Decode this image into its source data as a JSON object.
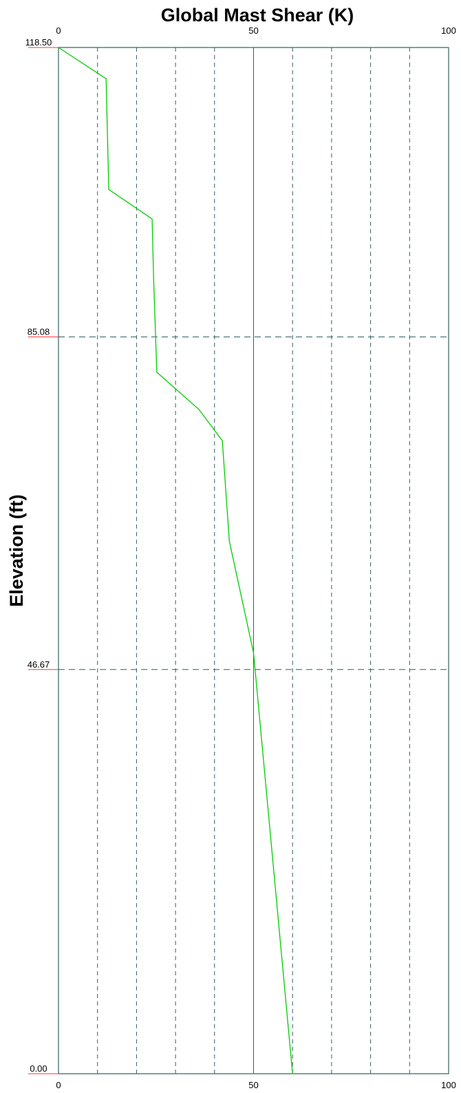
{
  "chart_data": {
    "type": "line",
    "title": "Global Mast Shear (K)",
    "xlabel": "",
    "ylabel": "Elevation (ft)",
    "xlim": [
      0,
      100
    ],
    "ylim": [
      0,
      118.5
    ],
    "x_ticks_major": [
      0,
      50,
      100
    ],
    "x_tick_labels": [
      "0",
      "50",
      "100"
    ],
    "x_minor_gridlines": [
      10,
      20,
      30,
      40,
      60,
      70,
      80,
      90
    ],
    "y_ticks": [
      0,
      46.67,
      85.08,
      118.5
    ],
    "y_tick_labels": [
      "0.00",
      "46.67",
      "85.08",
      "118.50"
    ],
    "grid": true,
    "colors": {
      "frame": "#2f5f5f",
      "grid": "#2f5f5f",
      "series": "#00cc00",
      "y_tick_mark": "#ff3333"
    },
    "series": [
      {
        "points": [
          {
            "x": 0.0,
            "y": 118.5
          },
          {
            "x": 12.2,
            "y": 114.9
          },
          {
            "x": 12.9,
            "y": 102.1
          },
          {
            "x": 24.0,
            "y": 98.7
          },
          {
            "x": 24.4,
            "y": 91.7
          },
          {
            "x": 25.2,
            "y": 81.0
          },
          {
            "x": 36.0,
            "y": 76.7
          },
          {
            "x": 42.0,
            "y": 73.1
          },
          {
            "x": 43.8,
            "y": 61.5
          },
          {
            "x": 50.0,
            "y": 48.6
          },
          {
            "x": 60.0,
            "y": 0.0
          }
        ]
      }
    ]
  }
}
